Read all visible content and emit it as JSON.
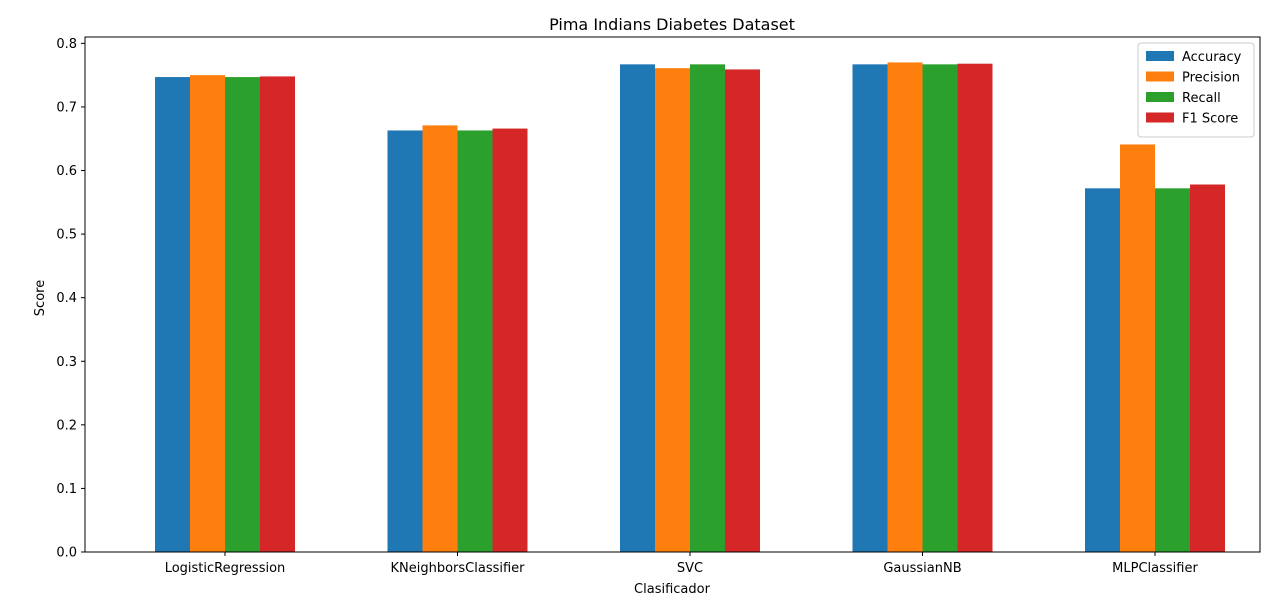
{
  "chart_data": {
    "type": "bar",
    "title": "Pima Indians Diabetes Dataset",
    "xlabel": "Clasificador",
    "ylabel": "Score",
    "categories": [
      "LogisticRegression",
      "KNeighborsClassifier",
      "SVC",
      "GaussianNB",
      "MLPClassifier"
    ],
    "series": [
      {
        "name": "Accuracy",
        "color": "#1f77b4",
        "values": [
          0.747,
          0.663,
          0.767,
          0.767,
          0.572
        ]
      },
      {
        "name": "Precision",
        "color": "#ff7f0e",
        "values": [
          0.75,
          0.671,
          0.761,
          0.77,
          0.641
        ]
      },
      {
        "name": "Recall",
        "color": "#2ca02c",
        "values": [
          0.747,
          0.663,
          0.767,
          0.767,
          0.572
        ]
      },
      {
        "name": "F1 Score",
        "color": "#d62728",
        "values": [
          0.748,
          0.666,
          0.759,
          0.768,
          0.578
        ]
      }
    ],
    "ylim": [
      0,
      0.81
    ],
    "yticks": [
      0.0,
      0.1,
      0.2,
      0.3,
      0.4,
      0.5,
      0.6,
      0.7,
      0.8
    ],
    "ytick_labels": [
      "0.0",
      "0.1",
      "0.2",
      "0.3",
      "0.4",
      "0.5",
      "0.6",
      "0.7",
      "0.8"
    ],
    "legend_position": "top-right",
    "grid": false
  }
}
